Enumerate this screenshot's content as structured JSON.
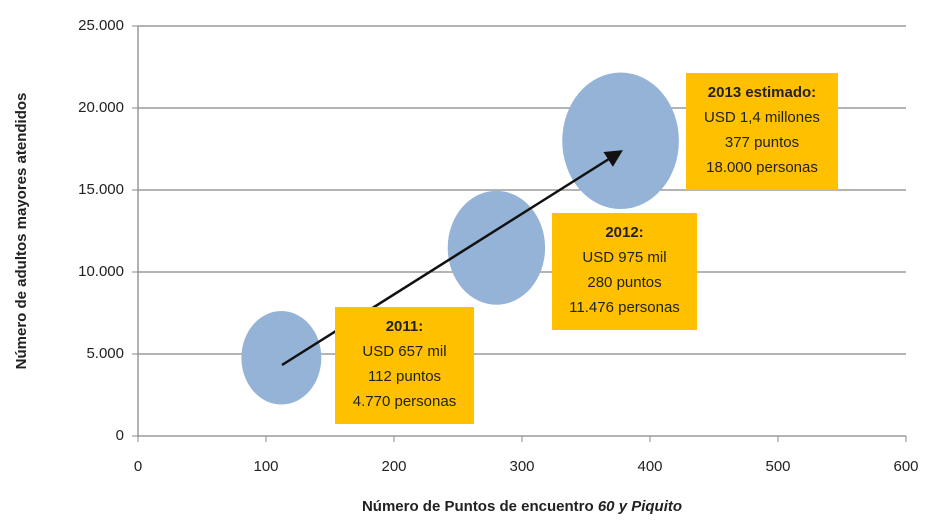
{
  "chart_data": {
    "type": "bubble",
    "xlabel": "Número de Puntos de encuentro",
    "xlabel_italic": "60 y Piquito",
    "ylabel": "Número de adultos mayores atendidos",
    "x": [
      112,
      280,
      377
    ],
    "values": [
      4770,
      11476,
      18000
    ],
    "sizes": [
      657000,
      975000,
      1400000
    ],
    "color": "#95b3d7",
    "xlim": [
      0,
      600
    ],
    "xticks": [
      0,
      100,
      200,
      300,
      400,
      500,
      600
    ],
    "ylim": [
      0,
      25000
    ],
    "yticks": [
      0,
      {
        "value": 5000,
        "label": "5.000"
      },
      {
        "value": 10000,
        "label": "10.000"
      },
      {
        "value": 15000,
        "label": "15.000"
      },
      {
        "value": 20000,
        "label": "20.000"
      },
      {
        "value": 25000,
        "label": "25.000"
      }
    ],
    "grid": true,
    "annotations": [
      {
        "title": "2011:",
        "lines": [
          "USD 657 mil",
          "112 puntos",
          "4.770 personas"
        ]
      },
      {
        "title": "2012:",
        "lines": [
          "USD 975 mil",
          "280 puntos",
          "11.476 personas"
        ]
      },
      {
        "title": "2013 estimado:",
        "lines": [
          "USD 1,4 millones",
          "377 puntos",
          "18.000 personas"
        ]
      }
    ],
    "annotation_color": "#ffc000"
  }
}
